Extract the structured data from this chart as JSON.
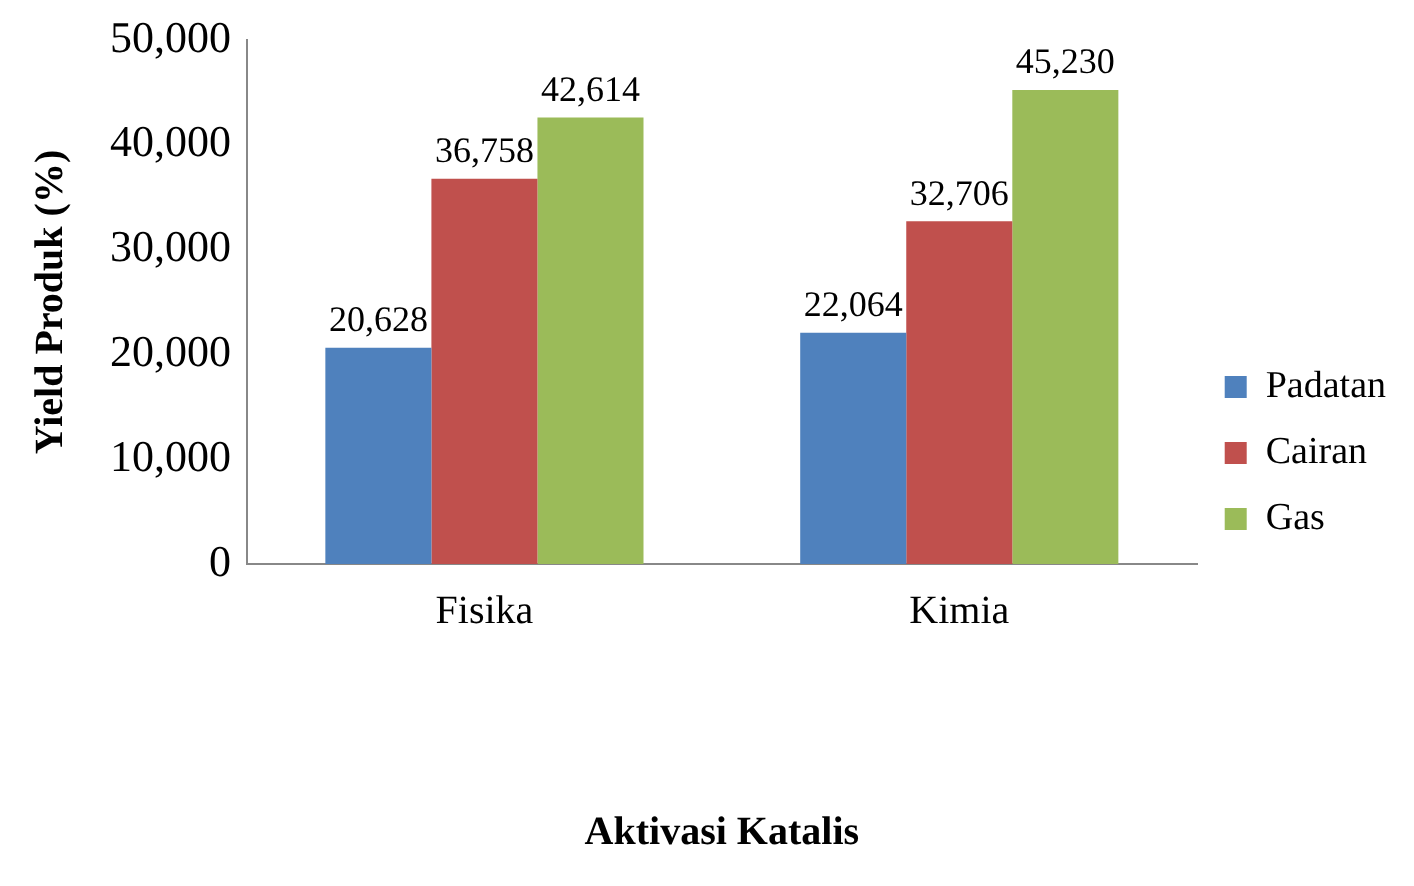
{
  "chart_data": {
    "type": "bar",
    "xlabel": "Aktivasi Katalis",
    "ylabel": "Yield Produk (%)",
    "categories": [
      "Fisika",
      "Kimia"
    ],
    "series": [
      {
        "name": "Padatan",
        "color": "#4f81bd",
        "values": [
          20628,
          22064
        ],
        "value_labels": [
          "20,628",
          "22,064"
        ]
      },
      {
        "name": "Cairan",
        "color": "#c0504d",
        "values": [
          36758,
          32706
        ],
        "value_labels": [
          "36,758",
          "32,706"
        ]
      },
      {
        "name": "Gas",
        "color": "#9bbb59",
        "values": [
          42614,
          45230
        ],
        "value_labels": [
          "42,614",
          "45,230"
        ]
      }
    ],
    "ylim": [
      0,
      50000
    ],
    "yticks": [
      0,
      {
        "value": 10000,
        "label": "10,000"
      },
      {
        "value": 20000,
        "label": "20,000"
      },
      {
        "value": 30000,
        "label": "30,000"
      },
      {
        "value": 40000,
        "label": "40,000"
      },
      {
        "value": 50000,
        "label": "50,000"
      }
    ],
    "grid": false,
    "legend": "right"
  }
}
